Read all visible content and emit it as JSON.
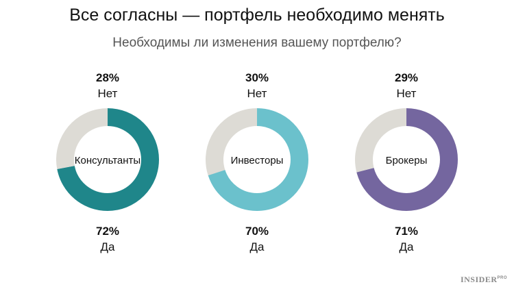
{
  "title": "Все согласны — портфель необходимо менять",
  "subtitle": "Необходимы ли изменения вашему портфелю?",
  "brand": {
    "name": "INSIDER",
    "suffix": "PRO"
  },
  "colors": {
    "rest": "#dddbd5"
  },
  "chart_data": [
    {
      "type": "pie",
      "center_label": "Консультанты",
      "categories": [
        "Нет",
        "Да"
      ],
      "values": [
        28,
        72
      ],
      "value_labels": [
        "28%",
        "72%"
      ],
      "colors": [
        "#dddbd5",
        "#1f868a"
      ]
    },
    {
      "type": "pie",
      "center_label": "Инвесторы",
      "categories": [
        "Нет",
        "Да"
      ],
      "values": [
        30,
        70
      ],
      "value_labels": [
        "30%",
        "70%"
      ],
      "colors": [
        "#dddbd5",
        "#6bc1cc"
      ]
    },
    {
      "type": "pie",
      "center_label": "Брокеры",
      "categories": [
        "Нет",
        "Да"
      ],
      "values": [
        29,
        71
      ],
      "value_labels": [
        "29%",
        "71%"
      ],
      "colors": [
        "#dddbd5",
        "#74669f"
      ]
    }
  ]
}
